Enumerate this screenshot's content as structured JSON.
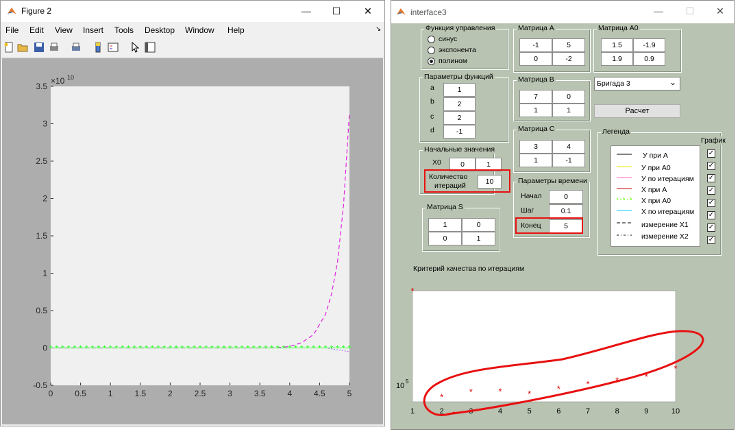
{
  "figure": {
    "title": "Figure 2",
    "controls": {
      "minimize": "—",
      "maximize": "☐",
      "close": "✕"
    },
    "menu": [
      "File",
      "Edit",
      "View",
      "Insert",
      "Tools",
      "Desktop",
      "Window",
      "Help"
    ],
    "corner_arrow": "↘",
    "toolbar_icons": [
      "new-figure-icon",
      "open-icon",
      "save-icon",
      "print-icon",
      "print-preview-icon",
      "colorbar-icon",
      "legend-icon",
      "pointer-icon",
      "property-editor-icon"
    ]
  },
  "interface": {
    "title": "interface3",
    "controls": {
      "minimize": "—",
      "maximize": "☐",
      "close": "✕"
    },
    "control_func": {
      "title": "Функция управления",
      "options": [
        "синус",
        "экспонента",
        "полином"
      ],
      "selected": 2
    },
    "func_params": {
      "title": "Параметры функций",
      "rows": [
        {
          "label": "a",
          "value": "1"
        },
        {
          "label": "b",
          "value": "2"
        },
        {
          "label": "c",
          "value": "2"
        },
        {
          "label": "d",
          "value": "-1"
        }
      ]
    },
    "initial": {
      "title": "Начальные значения",
      "x0_label": "X0",
      "x0": [
        "0",
        "1"
      ],
      "iter_label_1": "Количество",
      "iter_label_2": "итераций",
      "iter_value": "10"
    },
    "matrix_s": {
      "title": "Матрица S",
      "cells": [
        "1",
        "0",
        "0",
        "1"
      ]
    },
    "matrix_a": {
      "title": "Матрица A",
      "cells": [
        "-1",
        "5",
        "0",
        "-2"
      ]
    },
    "matrix_a0": {
      "title": "Матрица A0",
      "cells": [
        "1.5",
        "-1.9",
        "1.9",
        "0.9"
      ]
    },
    "matrix_b": {
      "title": "Матрица B",
      "cells": [
        "7",
        "0",
        "1",
        "1"
      ]
    },
    "matrix_c": {
      "title": "Матрица C",
      "cells": [
        "3",
        "4",
        "1",
        "-1"
      ]
    },
    "time_params": {
      "title": "Параметры времени",
      "rows": [
        {
          "label": "Начал",
          "value": "0"
        },
        {
          "label": "Шаг",
          "value": "0.1"
        },
        {
          "label": "Конец",
          "value": "5"
        }
      ]
    },
    "brigade_select": {
      "value": "Бригада 3",
      "arrow": "⌄"
    },
    "calc_button": "Расчет",
    "legend": {
      "title": "Легенда",
      "chart_label": "График",
      "check_mark": "✓",
      "items": [
        {
          "label": "У при A",
          "color": "#000000",
          "style": "solid"
        },
        {
          "label": "У при A0",
          "color": "#e6e600",
          "style": "solid"
        },
        {
          "label": "У по итерациям",
          "color": "#ff66cc",
          "style": "solid"
        },
        {
          "label": "X при A",
          "color": "#cc0000",
          "style": "solid"
        },
        {
          "label": "X при A0",
          "color": "#66ff00",
          "style": "star"
        },
        {
          "label": "X по итерациям",
          "color": "#00ccff",
          "style": "solid"
        },
        {
          "label": "измерение X1",
          "color": "#000000",
          "style": "dashed"
        },
        {
          "label": "измерение X2",
          "color": "#000000",
          "style": "dashdot"
        }
      ]
    },
    "criteria_title": "Критерий качества по итерациям"
  },
  "chart_data": [
    {
      "type": "line",
      "exponent_label": "×10",
      "exponent_power": "10",
      "xlim": [
        0,
        5
      ],
      "ylim": [
        -0.5,
        3.5
      ],
      "x_ticks": [
        "0",
        "0.5",
        "1",
        "1.5",
        "2",
        "2.5",
        "3",
        "3.5",
        "4",
        "4.5",
        "5"
      ],
      "y_ticks": [
        "-0.5",
        "0",
        "0.5",
        "1",
        "1.5",
        "2",
        "2.5",
        "3",
        "3.5"
      ],
      "series": [
        {
          "color": "#e020e0",
          "style": "dashed",
          "x": [
            0,
            3.6,
            3.8,
            4.0,
            4.2,
            4.4,
            4.6,
            4.7,
            4.8,
            4.9,
            5.0
          ],
          "y": [
            0,
            0,
            0.004,
            0.02,
            0.07,
            0.18,
            0.45,
            0.72,
            1.15,
            1.9,
            3.15
          ]
        },
        {
          "color": "#33ff33",
          "style": "star",
          "x": [
            0,
            0.1,
            0.2,
            0.3,
            0.4,
            0.5,
            0.6,
            0.7,
            0.8,
            0.9,
            1.0,
            1.1,
            1.2,
            1.3,
            1.4,
            1.5,
            1.6,
            1.7,
            1.8,
            1.9,
            2.0,
            2.1,
            2.2,
            2.3,
            2.4,
            2.5,
            2.6,
            2.7,
            2.8,
            2.9,
            3.0,
            3.1,
            3.2,
            3.3,
            3.4,
            3.5,
            3.6,
            3.7,
            3.8,
            3.9,
            4.0,
            4.1,
            4.2,
            4.3,
            4.4,
            4.5,
            4.6,
            4.7,
            4.8,
            4.9,
            5.0
          ],
          "y_const": 0
        }
      ]
    },
    {
      "type": "scatter",
      "title": "Критерий качества по итерациям",
      "xlim": [
        1,
        10
      ],
      "y_scale": "log",
      "y_tick_base": "10",
      "y_tick_power": "5",
      "x_ticks": [
        "1",
        "2",
        "3",
        "4",
        "5",
        "6",
        "7",
        "8",
        "9",
        "10"
      ],
      "points_color": "#e00000",
      "x": [
        1,
        2,
        3,
        4,
        5,
        6,
        7,
        8,
        9,
        10
      ],
      "y": [
        12000000,
        52000,
        68000,
        69000,
        61000,
        80000,
        102000,
        122000,
        148000,
        225000
      ]
    }
  ]
}
